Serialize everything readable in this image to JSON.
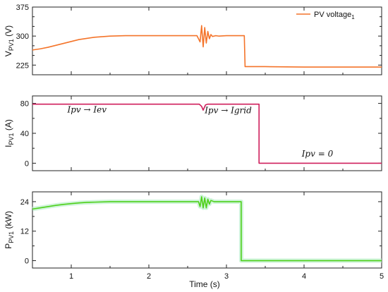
{
  "chart_data": [
    {
      "type": "line",
      "ylabel_main": "V",
      "ylabel_sub": "PV1",
      "ylabel_unit": " (V)",
      "xlim": [
        0.5,
        5
      ],
      "ylim": [
        200,
        375
      ],
      "yticks": [
        225,
        300,
        375
      ],
      "yticks_minor": [
        250,
        275,
        325,
        350
      ],
      "legend": {
        "label_main": "PV voltage",
        "label_sub": "1",
        "position": "top-right"
      },
      "series": [
        {
          "color": "#f4742a",
          "x": [
            0.5,
            0.6,
            0.7,
            0.8,
            0.9,
            1.0,
            1.1,
            1.2,
            1.3,
            1.5,
            1.7,
            1.9,
            2.1,
            2.3,
            2.5,
            2.62,
            2.66,
            2.68,
            2.7,
            2.72,
            2.74,
            2.76,
            2.78,
            2.8,
            2.82,
            2.86,
            2.9,
            3.0,
            3.1,
            3.2,
            3.23,
            3.24,
            3.5,
            4.0,
            4.5,
            5.0
          ],
          "y": [
            264,
            267,
            271,
            276,
            281,
            286,
            291,
            294,
            297,
            300,
            301,
            301,
            301,
            301,
            301,
            301,
            285,
            327,
            272,
            322,
            282,
            312,
            293,
            304,
            299,
            301,
            300,
            301,
            301,
            301,
            301,
            221,
            221,
            220,
            220,
            220
          ]
        }
      ]
    },
    {
      "type": "line",
      "ylabel_main": "I",
      "ylabel_sub": "PV1",
      "ylabel_unit": " (A)",
      "xlim": [
        0.5,
        5
      ],
      "ylim": [
        -10,
        90
      ],
      "yticks": [
        0,
        40,
        80
      ],
      "yticks_minor": [
        20,
        60
      ],
      "annotations": [
        {
          "text": "Ipv → Iev",
          "x": 0.95,
          "y": 68
        },
        {
          "text": "Ipv → Igrid",
          "x": 2.72,
          "y": 67
        },
        {
          "text": "Ipv = 0",
          "x": 3.97,
          "y": 9
        }
      ],
      "series": [
        {
          "color": "#cf1f5c",
          "x": [
            0.5,
            2.65,
            2.68,
            2.7,
            2.73,
            2.76,
            3.42,
            3.42,
            5.0
          ],
          "y": [
            79,
            79,
            76,
            71,
            78,
            79,
            79,
            0,
            0
          ]
        }
      ]
    },
    {
      "type": "line",
      "ylabel_main": "P",
      "ylabel_sub": "PV1",
      "ylabel_unit": " (kW)",
      "xlabel": "Time (s)",
      "xlim": [
        0.5,
        5
      ],
      "ylim": [
        -3,
        28
      ],
      "yticks": [
        0,
        12,
        24
      ],
      "yticks_minor": [
        6,
        18
      ],
      "xticks": [
        1,
        2,
        3,
        4,
        5
      ],
      "series": [
        {
          "color": "#4fd01a",
          "x": [
            0.5,
            0.6,
            0.7,
            0.8,
            0.9,
            1.0,
            1.1,
            1.2,
            1.3,
            1.5,
            1.7,
            1.9,
            2.1,
            2.3,
            2.5,
            2.64,
            2.66,
            2.68,
            2.7,
            2.72,
            2.74,
            2.76,
            2.78,
            2.8,
            2.84,
            2.9,
            3.0,
            3.1,
            3.19,
            3.19,
            3.5,
            4.0,
            4.5,
            5.0
          ],
          "y": [
            21.0,
            21.5,
            22.0,
            22.5,
            22.9,
            23.2,
            23.5,
            23.7,
            23.8,
            24.0,
            24.0,
            24.0,
            24.0,
            24.0,
            24.0,
            24.0,
            22.0,
            26.0,
            21.5,
            25.5,
            21.5,
            25.0,
            23.0,
            24.5,
            24.0,
            24.0,
            24.0,
            24.0,
            24.0,
            0,
            0,
            0,
            0,
            0
          ]
        }
      ]
    }
  ]
}
